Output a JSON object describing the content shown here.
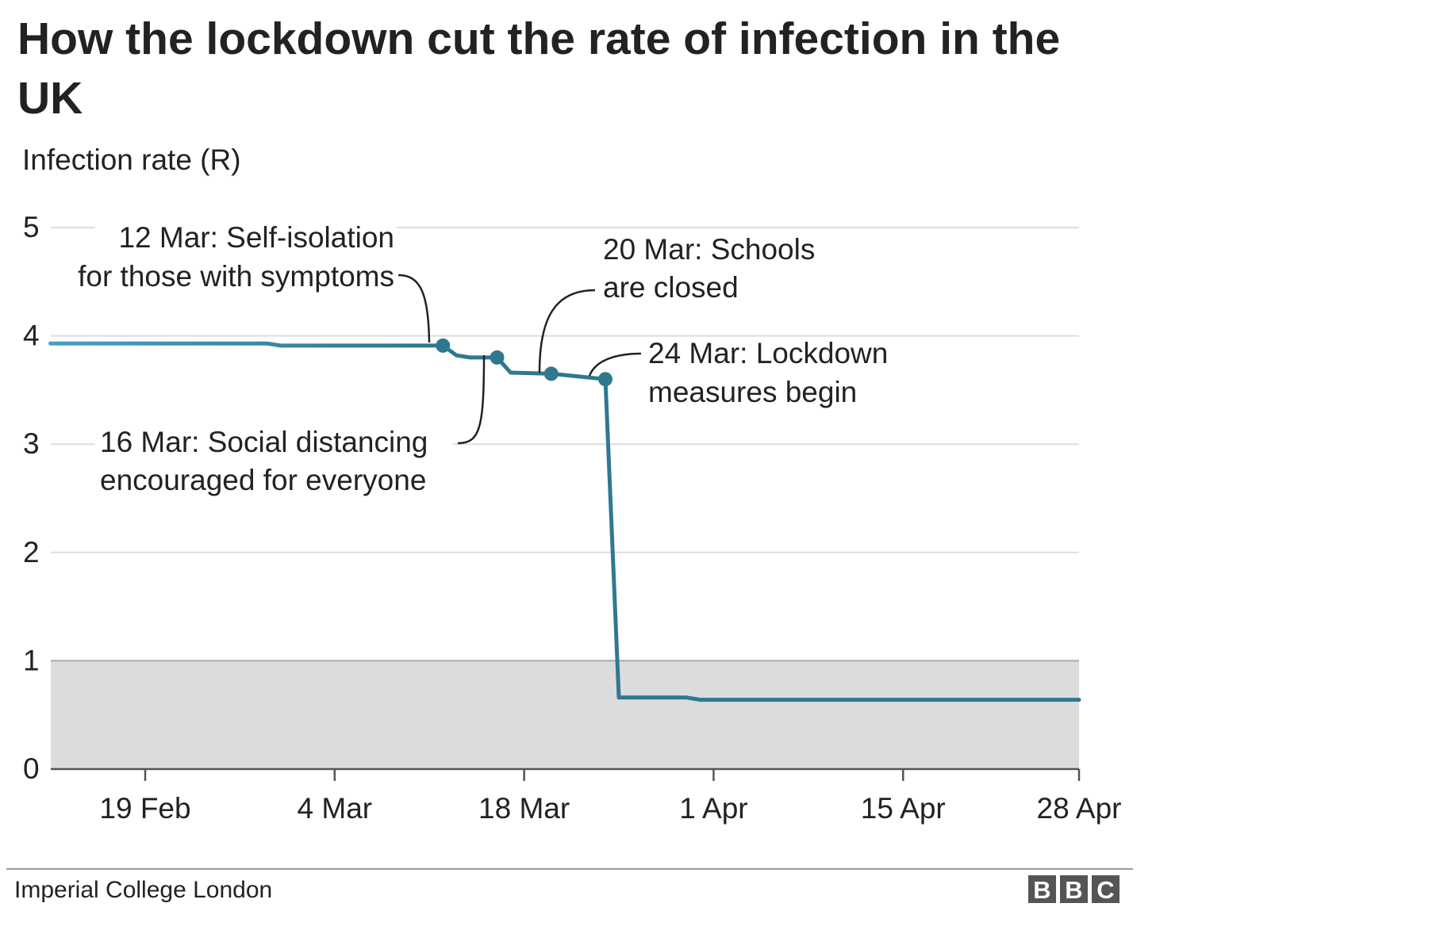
{
  "title": "How the lockdown cut the rate of infection in the UK",
  "source": "Imperial College London",
  "logo": {
    "letters": [
      "B",
      "B",
      "C"
    ],
    "color": "#555555"
  },
  "colors": {
    "line": "#2f7890",
    "line_early": "#4a9ec0",
    "grid": "#dddddd",
    "shade": "#dcdcdc",
    "axis": "#555555"
  },
  "chart_data": {
    "type": "line",
    "title": "How the lockdown cut the rate of infection in the UK",
    "ylabel": "Infection rate (R)",
    "ylim": [
      0,
      5
    ],
    "yticks": [
      0,
      1,
      2,
      3,
      4,
      5
    ],
    "x_range": [
      "2020-02-12",
      "2020-04-28"
    ],
    "xticks": [
      {
        "date": "2020-02-19",
        "label": "19 Feb"
      },
      {
        "date": "2020-03-04",
        "label": "4 Mar"
      },
      {
        "date": "2020-03-18",
        "label": "18 Mar"
      },
      {
        "date": "2020-04-01",
        "label": "1 Apr"
      },
      {
        "date": "2020-04-15",
        "label": "15 Apr"
      },
      {
        "date": "2020-04-28",
        "label": "28 Apr"
      }
    ],
    "shaded_band": {
      "y_from": 0,
      "y_to": 1
    },
    "grid": true,
    "series": [
      {
        "points": [
          {
            "x": "2020-02-12",
            "y": 3.93
          },
          {
            "x": "2020-02-28",
            "y": 3.93
          },
          {
            "x": "2020-02-29",
            "y": 3.91
          },
          {
            "x": "2020-03-12",
            "y": 3.91
          },
          {
            "x": "2020-03-13",
            "y": 3.82
          },
          {
            "x": "2020-03-14",
            "y": 3.8
          },
          {
            "x": "2020-03-16",
            "y": 3.8
          },
          {
            "x": "2020-03-17",
            "y": 3.66
          },
          {
            "x": "2020-03-20",
            "y": 3.65
          },
          {
            "x": "2020-03-24",
            "y": 3.6
          },
          {
            "x": "2020-03-25",
            "y": 0.66
          },
          {
            "x": "2020-03-30",
            "y": 0.66
          },
          {
            "x": "2020-03-31",
            "y": 0.64
          },
          {
            "x": "2020-04-28",
            "y": 0.64
          }
        ]
      }
    ],
    "markers": [
      {
        "x": "2020-03-12",
        "y": 3.91
      },
      {
        "x": "2020-03-16",
        "y": 3.8
      },
      {
        "x": "2020-03-20",
        "y": 3.65
      },
      {
        "x": "2020-03-24",
        "y": 3.6
      }
    ],
    "annotations": [
      {
        "id": "self-isolation",
        "lines": [
          "12 Mar: Self-isolation",
          "for those with symptoms"
        ]
      },
      {
        "id": "schools",
        "lines": [
          "20 Mar: Schools",
          "are closed"
        ]
      },
      {
        "id": "lockdown",
        "lines": [
          "24 Mar: Lockdown",
          "measures begin"
        ]
      },
      {
        "id": "social-distancing",
        "lines": [
          "16 Mar: Social distancing",
          "encouraged for everyone"
        ]
      }
    ]
  }
}
